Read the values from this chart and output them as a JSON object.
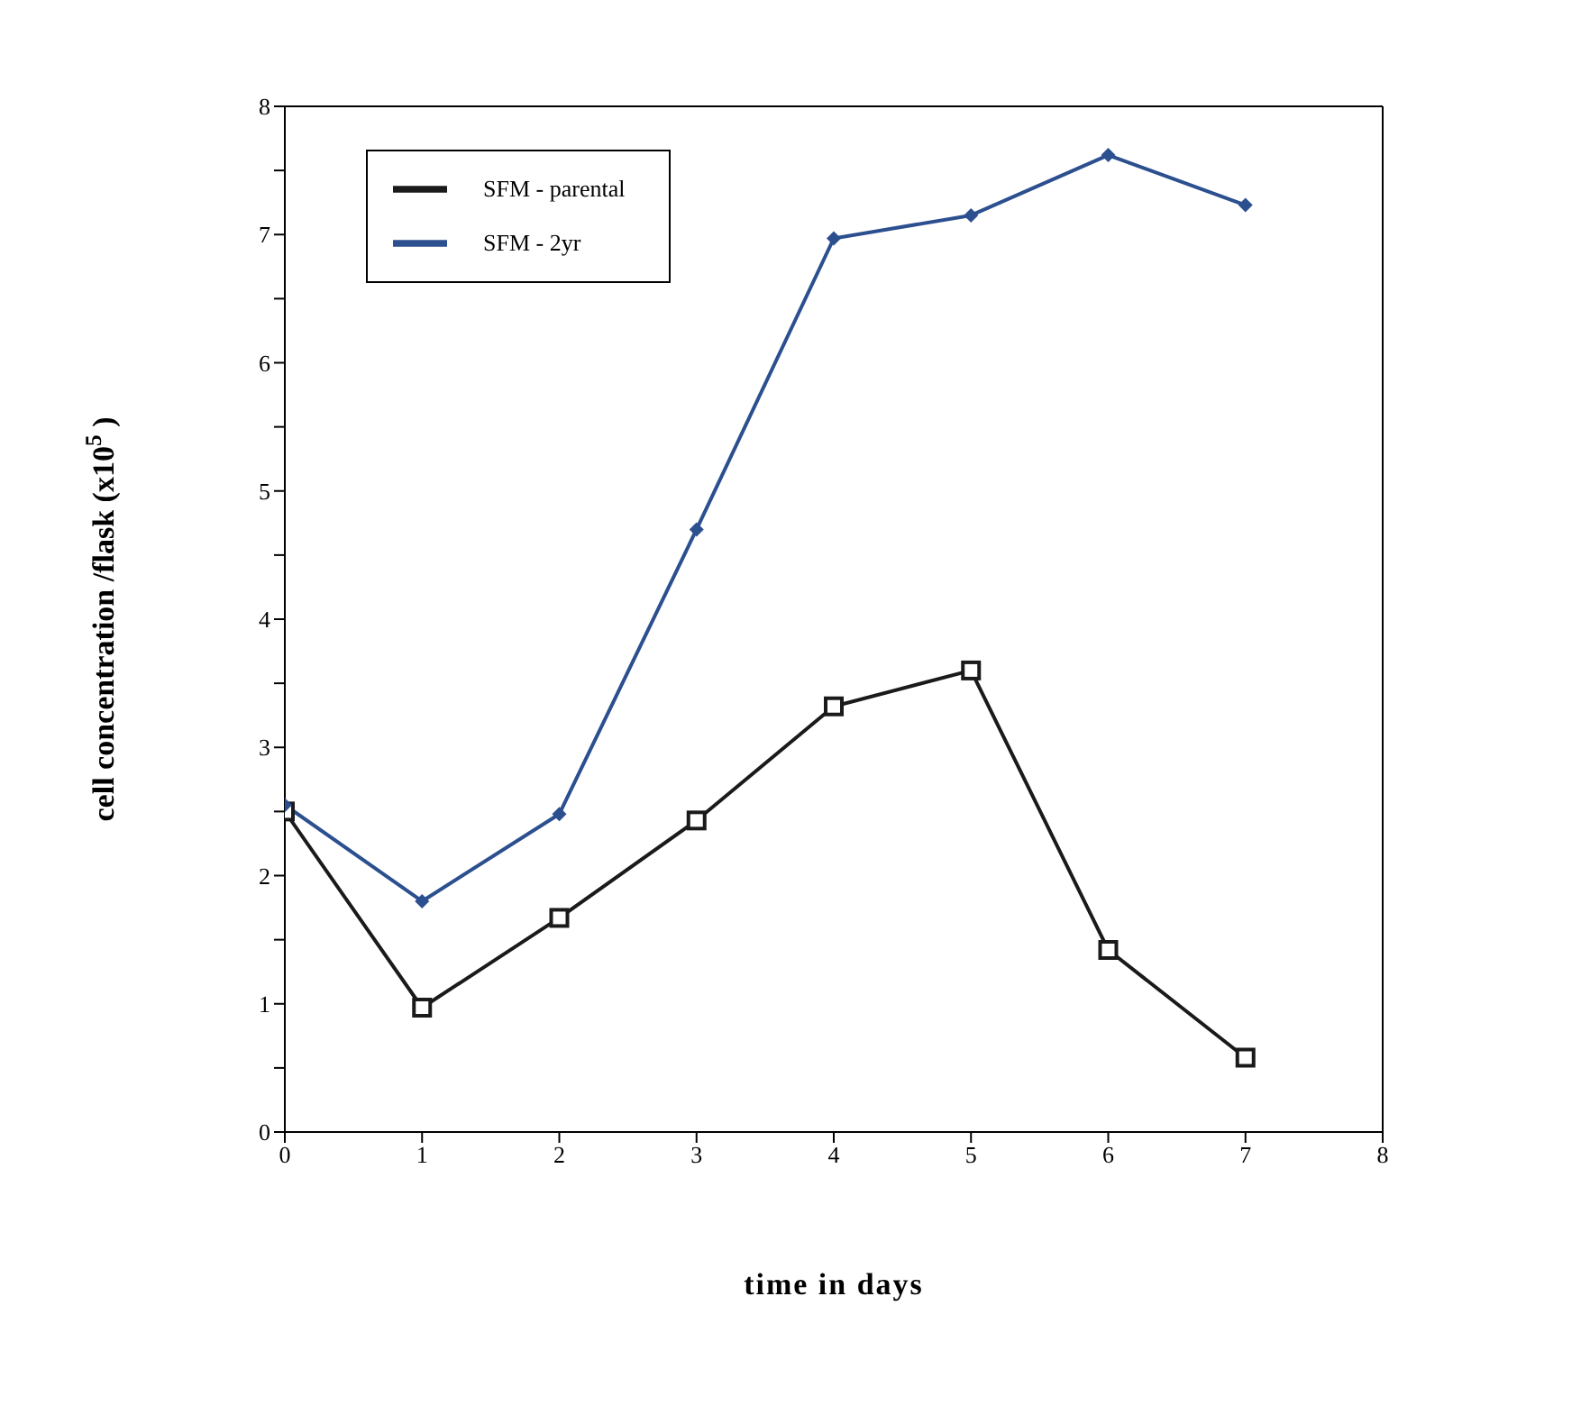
{
  "chart_data": {
    "type": "line",
    "xlabel": "time in days",
    "ylabel": "cell concentration /flask (x10$^{5}$)",
    "x": [
      0,
      1,
      2,
      3,
      4,
      5,
      6,
      7
    ],
    "series": [
      {
        "name": "SFM - parental",
        "color": "#1a1a1a",
        "marker": "square",
        "values": [
          2.5,
          0.97,
          1.67,
          2.43,
          3.32,
          3.6,
          1.42,
          0.58
        ]
      },
      {
        "name": "SFM - 2yr",
        "color": "#2b4f8f",
        "marker": "diamond",
        "values": [
          2.55,
          1.8,
          2.48,
          4.7,
          6.97,
          7.15,
          7.62,
          7.23
        ]
      }
    ],
    "xlim": [
      0,
      8
    ],
    "xticks": [
      0,
      1,
      2,
      3,
      4,
      5,
      6,
      7,
      8
    ],
    "ylim": [
      0,
      8
    ],
    "yticks": [
      0,
      {
        "value": 0.5,
        "label": null
      },
      1,
      {
        "value": 1.5,
        "label": null
      },
      2,
      {
        "value": 2.5,
        "label": null
      },
      3,
      {
        "value": 3.5,
        "label": null
      },
      4,
      {
        "value": 4.5,
        "label": null
      },
      5,
      {
        "value": 5.5,
        "label": null
      },
      6,
      {
        "value": 6.5,
        "label": null
      },
      7,
      {
        "value": 7.5,
        "label": null
      },
      8
    ],
    "grid": false,
    "legend": "top left",
    "line_style": "solid"
  }
}
